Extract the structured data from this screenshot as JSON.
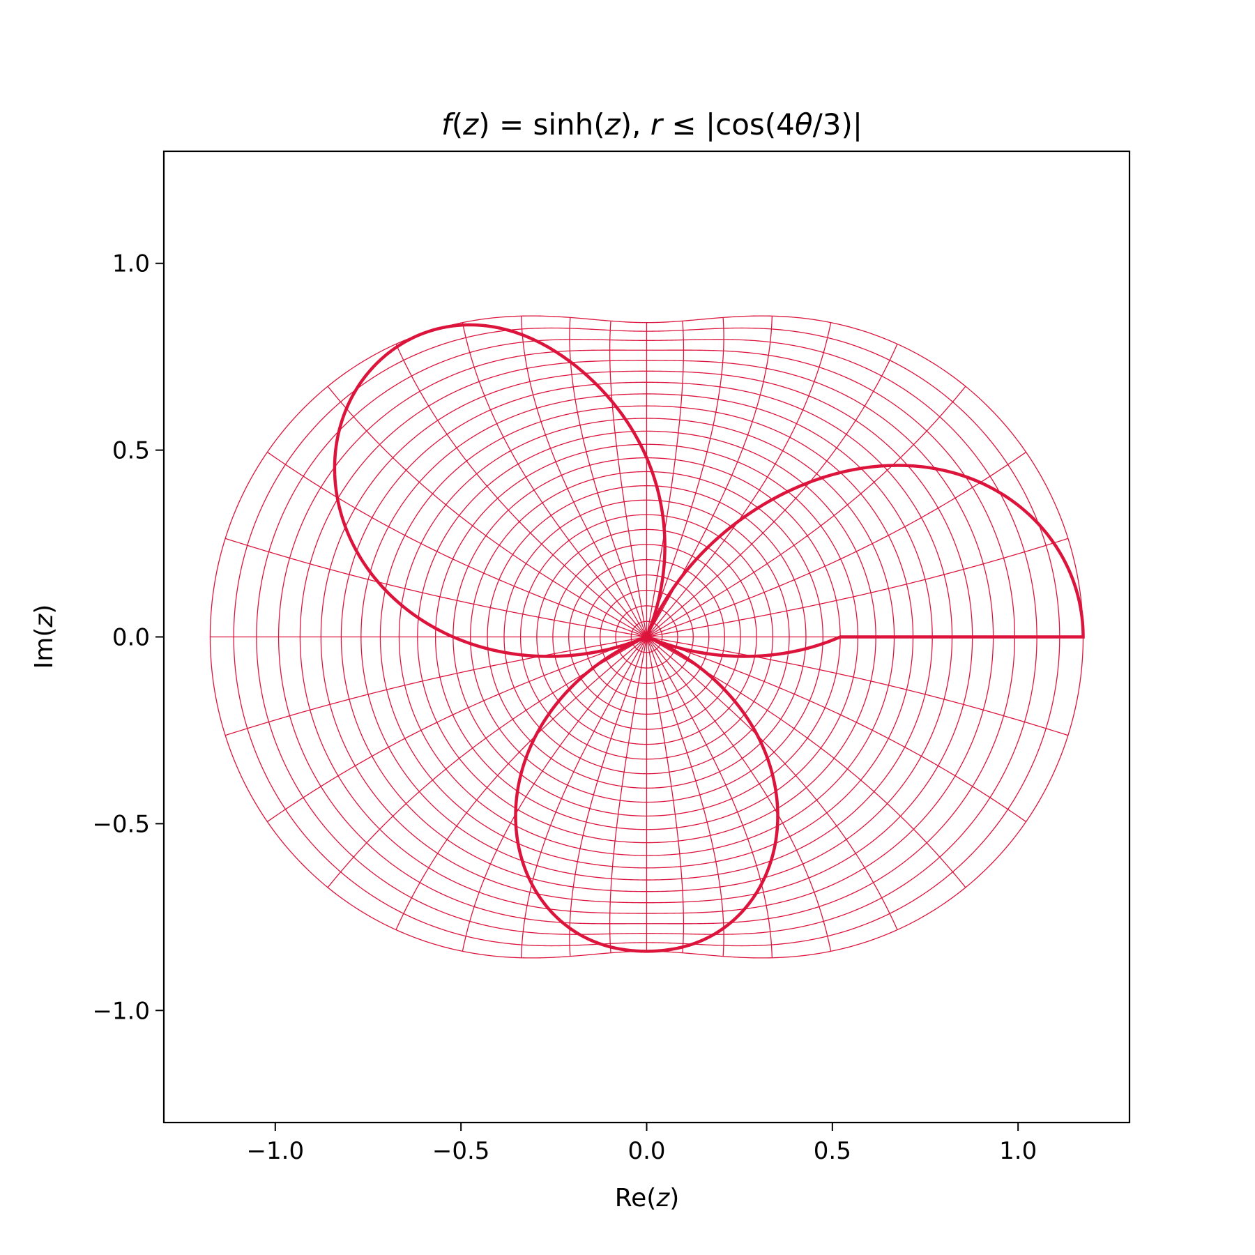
{
  "chart_data": {
    "type": "line",
    "title": "f(z) = sinh(z),  r ≤ |cos(4θ/3)|",
    "title_parts": {
      "f": "f",
      "open1": "(",
      "z1": "z",
      "eq": ") = sinh(",
      "z2": "z",
      "sep": "),  ",
      "r": "r",
      "le": " ≤ |cos(4",
      "theta": "θ",
      "tail": "/3)|"
    },
    "xlabel": "Re(z)",
    "ylabel": "Im(z)",
    "xlabel_parts": {
      "prefix": "Re(",
      "var": "z",
      "suffix": ")"
    },
    "ylabel_parts": {
      "prefix": "Im(",
      "var": "z",
      "suffix": ")"
    },
    "xlim": [
      -1.3,
      1.3
    ],
    "ylim": [
      -1.3,
      1.3
    ],
    "xticks": [
      -1.0,
      -0.5,
      0.0,
      0.5,
      1.0
    ],
    "yticks": [
      -1.0,
      -0.5,
      0.0,
      0.5,
      1.0
    ],
    "xtick_labels": [
      "−1.0",
      "−0.5",
      "0.0",
      "0.5",
      "1.0"
    ],
    "ytick_labels": [
      "−1.0",
      "−0.5",
      "0.0",
      "0.5",
      "1.0"
    ],
    "grid": false,
    "legend": "none",
    "color": "#dc143c",
    "function": "sinh",
    "domain_boundary": "r = |cos(4θ/3)|",
    "series": [
      {
        "role": "polar-grid-image",
        "radial_circles": 24,
        "spokes": 36,
        "radius_max": 1.0
      },
      {
        "role": "boundary-image",
        "samples": 720
      }
    ],
    "boundary_key_points": [
      {
        "x": 1.175,
        "y": 0.0
      },
      {
        "x": 0.84,
        "y": 0.43
      },
      {
        "x": 0.235,
        "y": 0.76
      },
      {
        "x": 0.0,
        "y": 0.84
      },
      {
        "x": -0.235,
        "y": 0.76
      },
      {
        "x": -0.84,
        "y": 0.43
      },
      {
        "x": -1.175,
        "y": 0.0
      },
      {
        "x": -0.84,
        "y": -0.43
      },
      {
        "x": -0.235,
        "y": -0.76
      },
      {
        "x": 0.0,
        "y": -0.84
      },
      {
        "x": 0.235,
        "y": -0.76
      },
      {
        "x": 0.84,
        "y": -0.43
      }
    ]
  }
}
